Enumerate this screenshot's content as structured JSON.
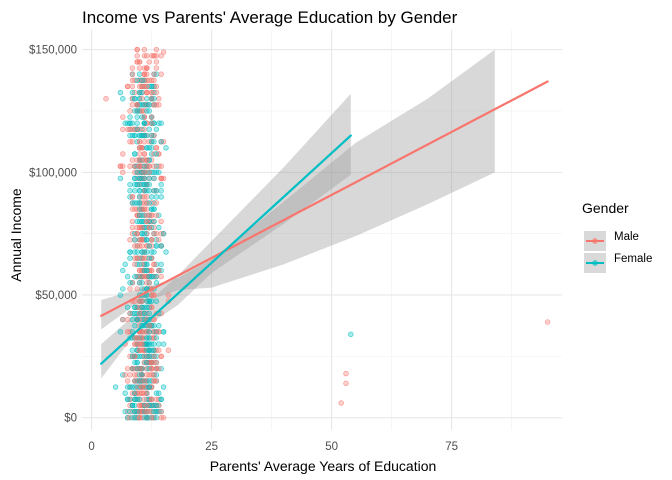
{
  "chart_data": {
    "type": "scatter",
    "title": "Income vs Parents' Average Education by Gender",
    "xlabel": "Parents' Average Years of Education",
    "ylabel": "Annual Income",
    "xlim": [
      -2,
      98
    ],
    "ylim": [
      -5000,
      158000
    ],
    "x_ticks": [
      0,
      25,
      50,
      75
    ],
    "x_tick_labels": [
      "0",
      "25",
      "50",
      "75"
    ],
    "y_ticks": [
      0,
      50000,
      100000,
      150000
    ],
    "y_tick_labels": [
      "$0",
      "$50,000",
      "$100,000",
      "$150,000"
    ],
    "grid": true,
    "point_alpha": 0.35,
    "legend": {
      "title": "Gender",
      "position": "right",
      "entries": [
        "Male",
        "Female"
      ]
    },
    "series": [
      {
        "name": "Male",
        "color": "#F8766D",
        "trend": {
          "x": [
            2,
            95
          ],
          "y": [
            41500,
            137000
          ]
        },
        "ci_band": {
          "x": [
            2,
            9,
            18,
            25,
            40,
            55,
            70,
            84
          ],
          "upper": [
            48000,
            52000,
            57000,
            64500,
            88000,
            112000,
            130000,
            150000
          ],
          "lower": [
            36000,
            46000,
            52000,
            53000,
            62500,
            74000,
            87000,
            100000
          ]
        },
        "scatter_cluster": {
          "x_range": [
            3,
            19
          ],
          "y_range": [
            0,
            150000
          ],
          "n": 560
        },
        "outliers": [
          {
            "x": 53,
            "y": 18000
          },
          {
            "x": 53,
            "y": 14000
          },
          {
            "x": 52,
            "y": 6000
          },
          {
            "x": 95,
            "y": 39000
          },
          {
            "x": 3,
            "y": 130000
          },
          {
            "x": 15,
            "y": 149000
          }
        ]
      },
      {
        "name": "Female",
        "color": "#00BFC4",
        "trend": {
          "x": [
            2,
            54
          ],
          "y": [
            22000,
            115000
          ]
        },
        "ci_band": {
          "x": [
            2,
            9,
            18,
            25,
            40,
            54
          ],
          "upper": [
            30000,
            42000,
            58000,
            72000,
            102000,
            132000
          ],
          "lower": [
            16000,
            34000,
            46000,
            59000,
            79000,
            99000
          ]
        },
        "scatter_cluster": {
          "x_range": [
            3,
            19
          ],
          "y_range": [
            0,
            140000
          ],
          "n": 520
        },
        "outliers": [
          {
            "x": 54,
            "y": 34000
          }
        ]
      }
    ]
  }
}
